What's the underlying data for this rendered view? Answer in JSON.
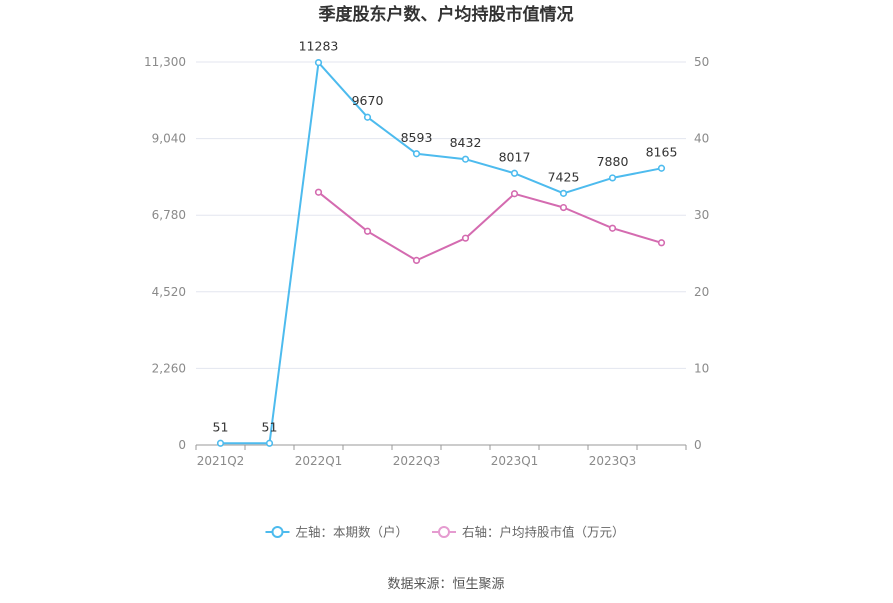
{
  "chart_data": {
    "type": "line",
    "title": "季度股东户数、户均持股市值情况",
    "x": [
      "2021Q2",
      "2021Q4",
      "2022Q1",
      "2022Q2",
      "2022Q3",
      "2022Q4",
      "2023Q1",
      "2023Q2",
      "2023Q3",
      "2023Q4"
    ],
    "x_tick_labels": [
      "2021Q2",
      "2022Q1",
      "2022Q3",
      "2023Q1",
      "2023Q3"
    ],
    "left_axis": {
      "ylim": [
        0,
        11300
      ],
      "ticks": [
        "0",
        "2,260",
        "4,520",
        "6,780",
        "9,040",
        "11,300"
      ]
    },
    "right_axis": {
      "ylim": [
        0,
        50
      ],
      "ticks": [
        "0",
        "10",
        "20",
        "30",
        "40",
        "50"
      ]
    },
    "series": [
      {
        "name": "左轴：本期数（户）",
        "axis": "left",
        "color": "#4dbbee",
        "values": [
          51,
          51,
          11283,
          9670,
          8593,
          8432,
          8017,
          7425,
          7880,
          8165
        ],
        "labels": [
          "51",
          "51",
          "11283",
          "9670",
          "8593",
          "8432",
          "8017",
          "7425",
          "7880",
          "8165"
        ]
      },
      {
        "name": "右轴：户均持股市值（万元）",
        "axis": "right",
        "color": "#d46bb0",
        "legend_color": "#e59bd0",
        "values": [
          null,
          null,
          33.0,
          27.9,
          24.1,
          27.0,
          32.8,
          31.0,
          28.3,
          26.4
        ]
      }
    ],
    "grid": "horizontal",
    "legend_position": "bottom"
  },
  "source": "数据来源：恒生聚源"
}
